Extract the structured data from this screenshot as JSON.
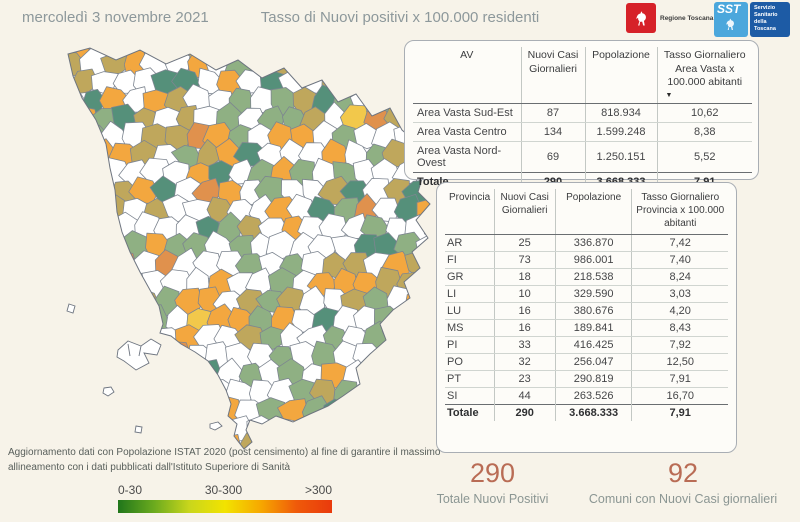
{
  "header": {
    "date": "mercoledì 3 novembre 2021",
    "title": "Tasso di Nuovi positivi x 100.000 residenti",
    "logos": {
      "regione": {
        "label": "Regione Toscana",
        "color": "#d62128"
      },
      "sst": {
        "abbr": "SST",
        "label": "Servizio Sanitario della Toscana",
        "light_blue": "#4ba7dc",
        "dark_blue": "#1d5ba5"
      }
    }
  },
  "chart_data": [
    {
      "type": "table",
      "name": "area_vasta",
      "columns": [
        "AV",
        "Nuovi Casi Giornalieri",
        "Popolazione",
        "Tasso Giornaliero Area Vasta x 100.000 abitanti"
      ],
      "rows": [
        [
          "Area Vasta Sud-Est",
          "87",
          "818.934",
          "10,62"
        ],
        [
          "Area Vasta Centro",
          "134",
          "1.599.248",
          "8,38"
        ],
        [
          "Area Vasta Nord-Ovest",
          "69",
          "1.250.151",
          "5,52"
        ]
      ],
      "total": [
        "Totale",
        "290",
        "3.668.333",
        "7,91"
      ],
      "sorted_by": "Tasso Giornaliero Area Vasta x 100.000 abitanti (descending)"
    },
    {
      "type": "table",
      "name": "province",
      "columns": [
        "Provincia",
        "Nuovi Casi Giornalieri",
        "Popolazione",
        "Tasso Giornaliero Provincia x 100.000 abitanti"
      ],
      "rows": [
        [
          "AR",
          "25",
          "336.870",
          "7,42"
        ],
        [
          "FI",
          "73",
          "986.001",
          "7,40"
        ],
        [
          "GR",
          "18",
          "218.538",
          "8,24"
        ],
        [
          "LI",
          "10",
          "329.590",
          "3,03"
        ],
        [
          "LU",
          "16",
          "380.676",
          "4,20"
        ],
        [
          "MS",
          "16",
          "189.841",
          "8,43"
        ],
        [
          "PI",
          "33",
          "416.425",
          "7,92"
        ],
        [
          "PO",
          "32",
          "256.047",
          "12,50"
        ],
        [
          "PT",
          "23",
          "290.819",
          "7,91"
        ],
        [
          "SI",
          "44",
          "263.526",
          "16,70"
        ]
      ],
      "total": [
        "Totale",
        "290",
        "3.668.333",
        "7,91"
      ]
    },
    {
      "type": "choropleth",
      "name": "tuscany_municipalities",
      "title": "Tasso di Nuovi positivi x 100.000 residenti",
      "legend_buckets": [
        "0-30",
        "30-300",
        ">300"
      ],
      "note": "per-municipality values are not individually labeled in the image"
    }
  ],
  "footnote": "Aggiornamento dati con Popolazione ISTAT 2020 (post censimento) al fine di garantire il massimo allineamento con i dati pubblicati dall'Istituto Superiore di Sanità",
  "legend": {
    "labels": [
      "0-30",
      "30-300",
      ">300"
    ],
    "gradient": [
      "#20761b",
      "#6aaa1e",
      "#c9d61c",
      "#f2e300",
      "#f6a800",
      "#ef5a0a",
      "#e93a0c"
    ]
  },
  "kpis": [
    {
      "value": "290",
      "label": "Totale Nuovi Positivi"
    },
    {
      "value": "92",
      "label": "Comuni con Nuovi Casi giornalieri"
    }
  ],
  "kpi_color": "#b96c55",
  "map": {
    "stroke": "#7d8590",
    "outline": "#6e7580",
    "seed": 11,
    "cell_size": 21,
    "categories": [
      {
        "name": "zero-cases",
        "color": "#ffffff",
        "weight": 0.46
      },
      {
        "name": "rate-low-green",
        "color": "#8fb083",
        "weight": 0.15
      },
      {
        "name": "rate-low-teal",
        "color": "#55907a",
        "weight": 0.1
      },
      {
        "name": "rate-mid-olive",
        "color": "#bfa75c",
        "weight": 0.13
      },
      {
        "name": "rate-mid-orange",
        "color": "#f3a73f",
        "weight": 0.13
      },
      {
        "name": "rate-high-orange",
        "color": "#e0914d",
        "weight": 0.02
      },
      {
        "name": "rate-mid-yellow",
        "color": "#f2c84b",
        "weight": 0.01
      }
    ]
  }
}
